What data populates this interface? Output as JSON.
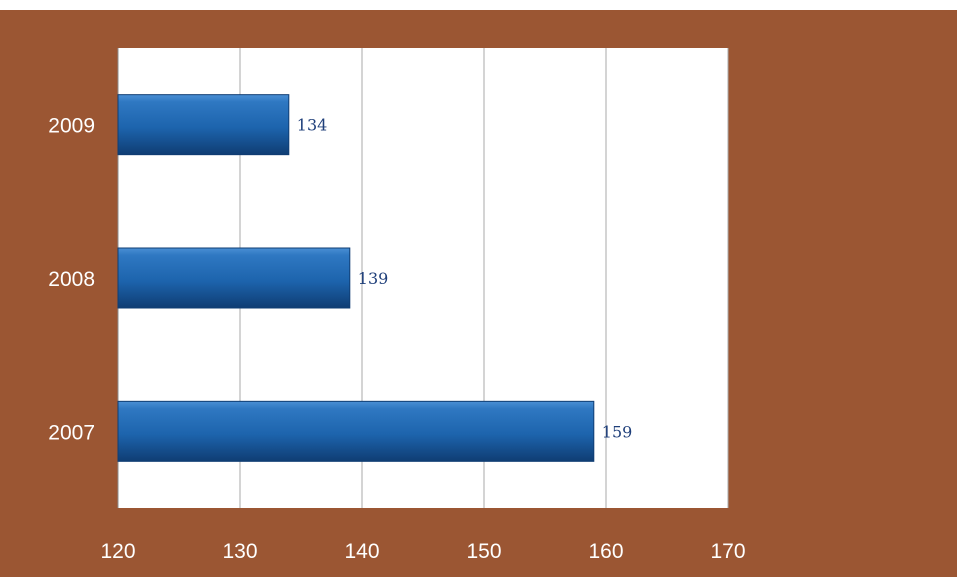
{
  "chart_data": {
    "type": "bar",
    "orientation": "horizontal",
    "title": "",
    "xlabel": "",
    "ylabel": "",
    "categories": [
      "2007",
      "2008",
      "2009"
    ],
    "values": [
      159,
      139,
      134
    ],
    "data_labels": [
      "159",
      "139",
      "134"
    ],
    "xlim": [
      120,
      170
    ],
    "x_ticks": [
      120,
      130,
      140,
      150,
      160,
      170
    ],
    "x_tick_labels": [
      "120",
      "130",
      "140",
      "150",
      "160",
      "170"
    ],
    "grid": true,
    "legend": "none",
    "colors": {
      "background": "#9b5633",
      "plot_area": "#ffffff",
      "bar": "#1d64ad",
      "bar_highlight": "#4a8fd4",
      "bar_shadow": "#0f3d73",
      "data_label": "#1f3f7a",
      "tick_label": "#ffffff",
      "gridline": "#a8a8a8"
    }
  }
}
